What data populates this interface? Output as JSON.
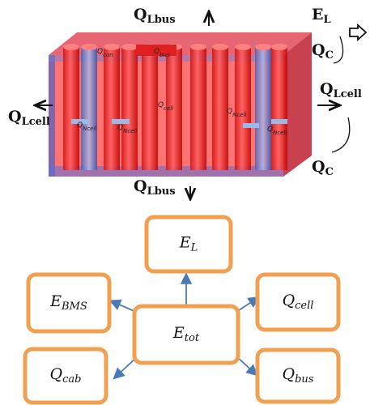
{
  "pack": {
    "outer_labels": [
      {
        "main": "Q",
        "sub": "Lbus"
      },
      {
        "main": "E",
        "sub": "L"
      },
      {
        "main": "Q",
        "sub": "C"
      },
      {
        "main": "Q",
        "sub": "Lcell"
      },
      {
        "main": "Q",
        "sub": "Lcell"
      },
      {
        "main": "Q",
        "sub": "Lbus"
      },
      {
        "main": "Q",
        "sub": "C"
      }
    ],
    "inner_labels": [
      {
        "main": "Q",
        "sub": "con"
      },
      {
        "main": "Q",
        "sub": "bus"
      },
      {
        "main": "Q",
        "sub": "cell"
      },
      {
        "main": "Q",
        "sub": "Ncell"
      },
      {
        "main": "Q",
        "sub": "Ncell"
      },
      {
        "main": "Q",
        "sub": "Ncell"
      },
      {
        "main": "Q",
        "sub": "Ncell"
      }
    ]
  },
  "nodes": [
    {
      "main": "E",
      "sub": "L"
    },
    {
      "main": "E",
      "sub": "BMS"
    },
    {
      "main": "Q",
      "sub": "cell"
    },
    {
      "main": "E",
      "sub": "tot"
    },
    {
      "main": "Q",
      "sub": "cab"
    },
    {
      "main": "Q",
      "sub": "bus"
    }
  ]
}
